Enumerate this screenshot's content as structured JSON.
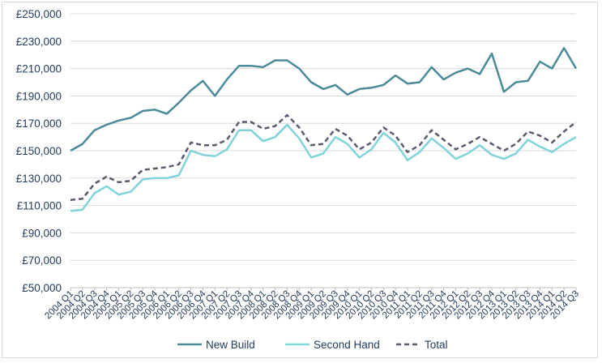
{
  "chart_data": {
    "type": "line",
    "title": "",
    "xlabel": "",
    "ylabel": "",
    "ylim": [
      50000,
      250000
    ],
    "yticks": [
      "£50,000",
      "£70,000",
      "£90,000",
      "£110,000",
      "£130,000",
      "£150,000",
      "£170,000",
      "£190,000",
      "£210,000",
      "£230,000",
      "£250,000"
    ],
    "ytick_values": [
      50000,
      70000,
      90000,
      110000,
      130000,
      150000,
      170000,
      190000,
      210000,
      230000,
      250000
    ],
    "grid": "horizontal",
    "legend_position": "bottom",
    "categories": [
      "2004 Q1",
      "2004 Q2",
      "2004 Q3",
      "2004 Q4",
      "2005 Q1",
      "2005 Q2",
      "2005 Q3",
      "2005 Q4",
      "2006 Q1",
      "2006 Q2",
      "2006 Q3",
      "2006 Q4",
      "2007 Q1",
      "2007 Q2",
      "2007 Q3",
      "2007 Q4",
      "2008 Q1",
      "2008 Q2",
      "2008 Q3",
      "2008 Q4",
      "2009 Q1",
      "2009 Q2",
      "2009 Q3",
      "2009 Q4",
      "2010 Q1",
      "2010 Q2",
      "2010 Q3",
      "2010 Q4",
      "2011 Q1",
      "2011 Q2",
      "2011 Q3",
      "2011 Q4",
      "2012 Q1",
      "2012 Q2",
      "2012 Q3",
      "2012 Q4",
      "2013 Q1",
      "2013 Q2",
      "2013 Q3",
      "2013 Q4",
      "2014 Q1",
      "2014 Q2",
      "2014 Q3"
    ],
    "series": [
      {
        "name": "New Build",
        "color": "#4a8a99",
        "dash": "solid",
        "values": [
          150000,
          155000,
          165000,
          169000,
          172000,
          174000,
          179000,
          180000,
          177000,
          185000,
          194000,
          201000,
          190000,
          202000,
          212000,
          212000,
          211000,
          216000,
          216000,
          210000,
          200000,
          195000,
          198000,
          191000,
          195000,
          196000,
          198000,
          205000,
          199000,
          200000,
          211000,
          202000,
          207000,
          210000,
          206000,
          221000,
          193000,
          200000,
          201000,
          215000,
          210000,
          225000,
          210000
        ]
      },
      {
        "name": "Second Hand",
        "color": "#7fd3d9",
        "dash": "solid",
        "values": [
          106000,
          107000,
          119000,
          124000,
          118000,
          120000,
          129000,
          130000,
          130000,
          132000,
          150000,
          147000,
          146000,
          151000,
          165000,
          165000,
          157000,
          160000,
          169000,
          159000,
          145000,
          148000,
          160000,
          155000,
          145000,
          151000,
          163000,
          156000,
          143000,
          149000,
          159000,
          152000,
          144000,
          148000,
          154000,
          147000,
          144000,
          148000,
          158000,
          153000,
          149000,
          155000,
          160000
        ]
      },
      {
        "name": "Total",
        "color": "#5a5a6e",
        "dash": "dashed",
        "values": [
          114000,
          115000,
          126000,
          131000,
          127000,
          128000,
          136000,
          137000,
          138000,
          140000,
          156000,
          154000,
          154000,
          158000,
          171000,
          171000,
          166000,
          168000,
          176000,
          167000,
          154000,
          155000,
          166000,
          161000,
          151000,
          156000,
          167000,
          161000,
          149000,
          154000,
          165000,
          158000,
          151000,
          155000,
          160000,
          155000,
          150000,
          155000,
          164000,
          161000,
          156000,
          164000,
          171000
        ]
      }
    ]
  }
}
